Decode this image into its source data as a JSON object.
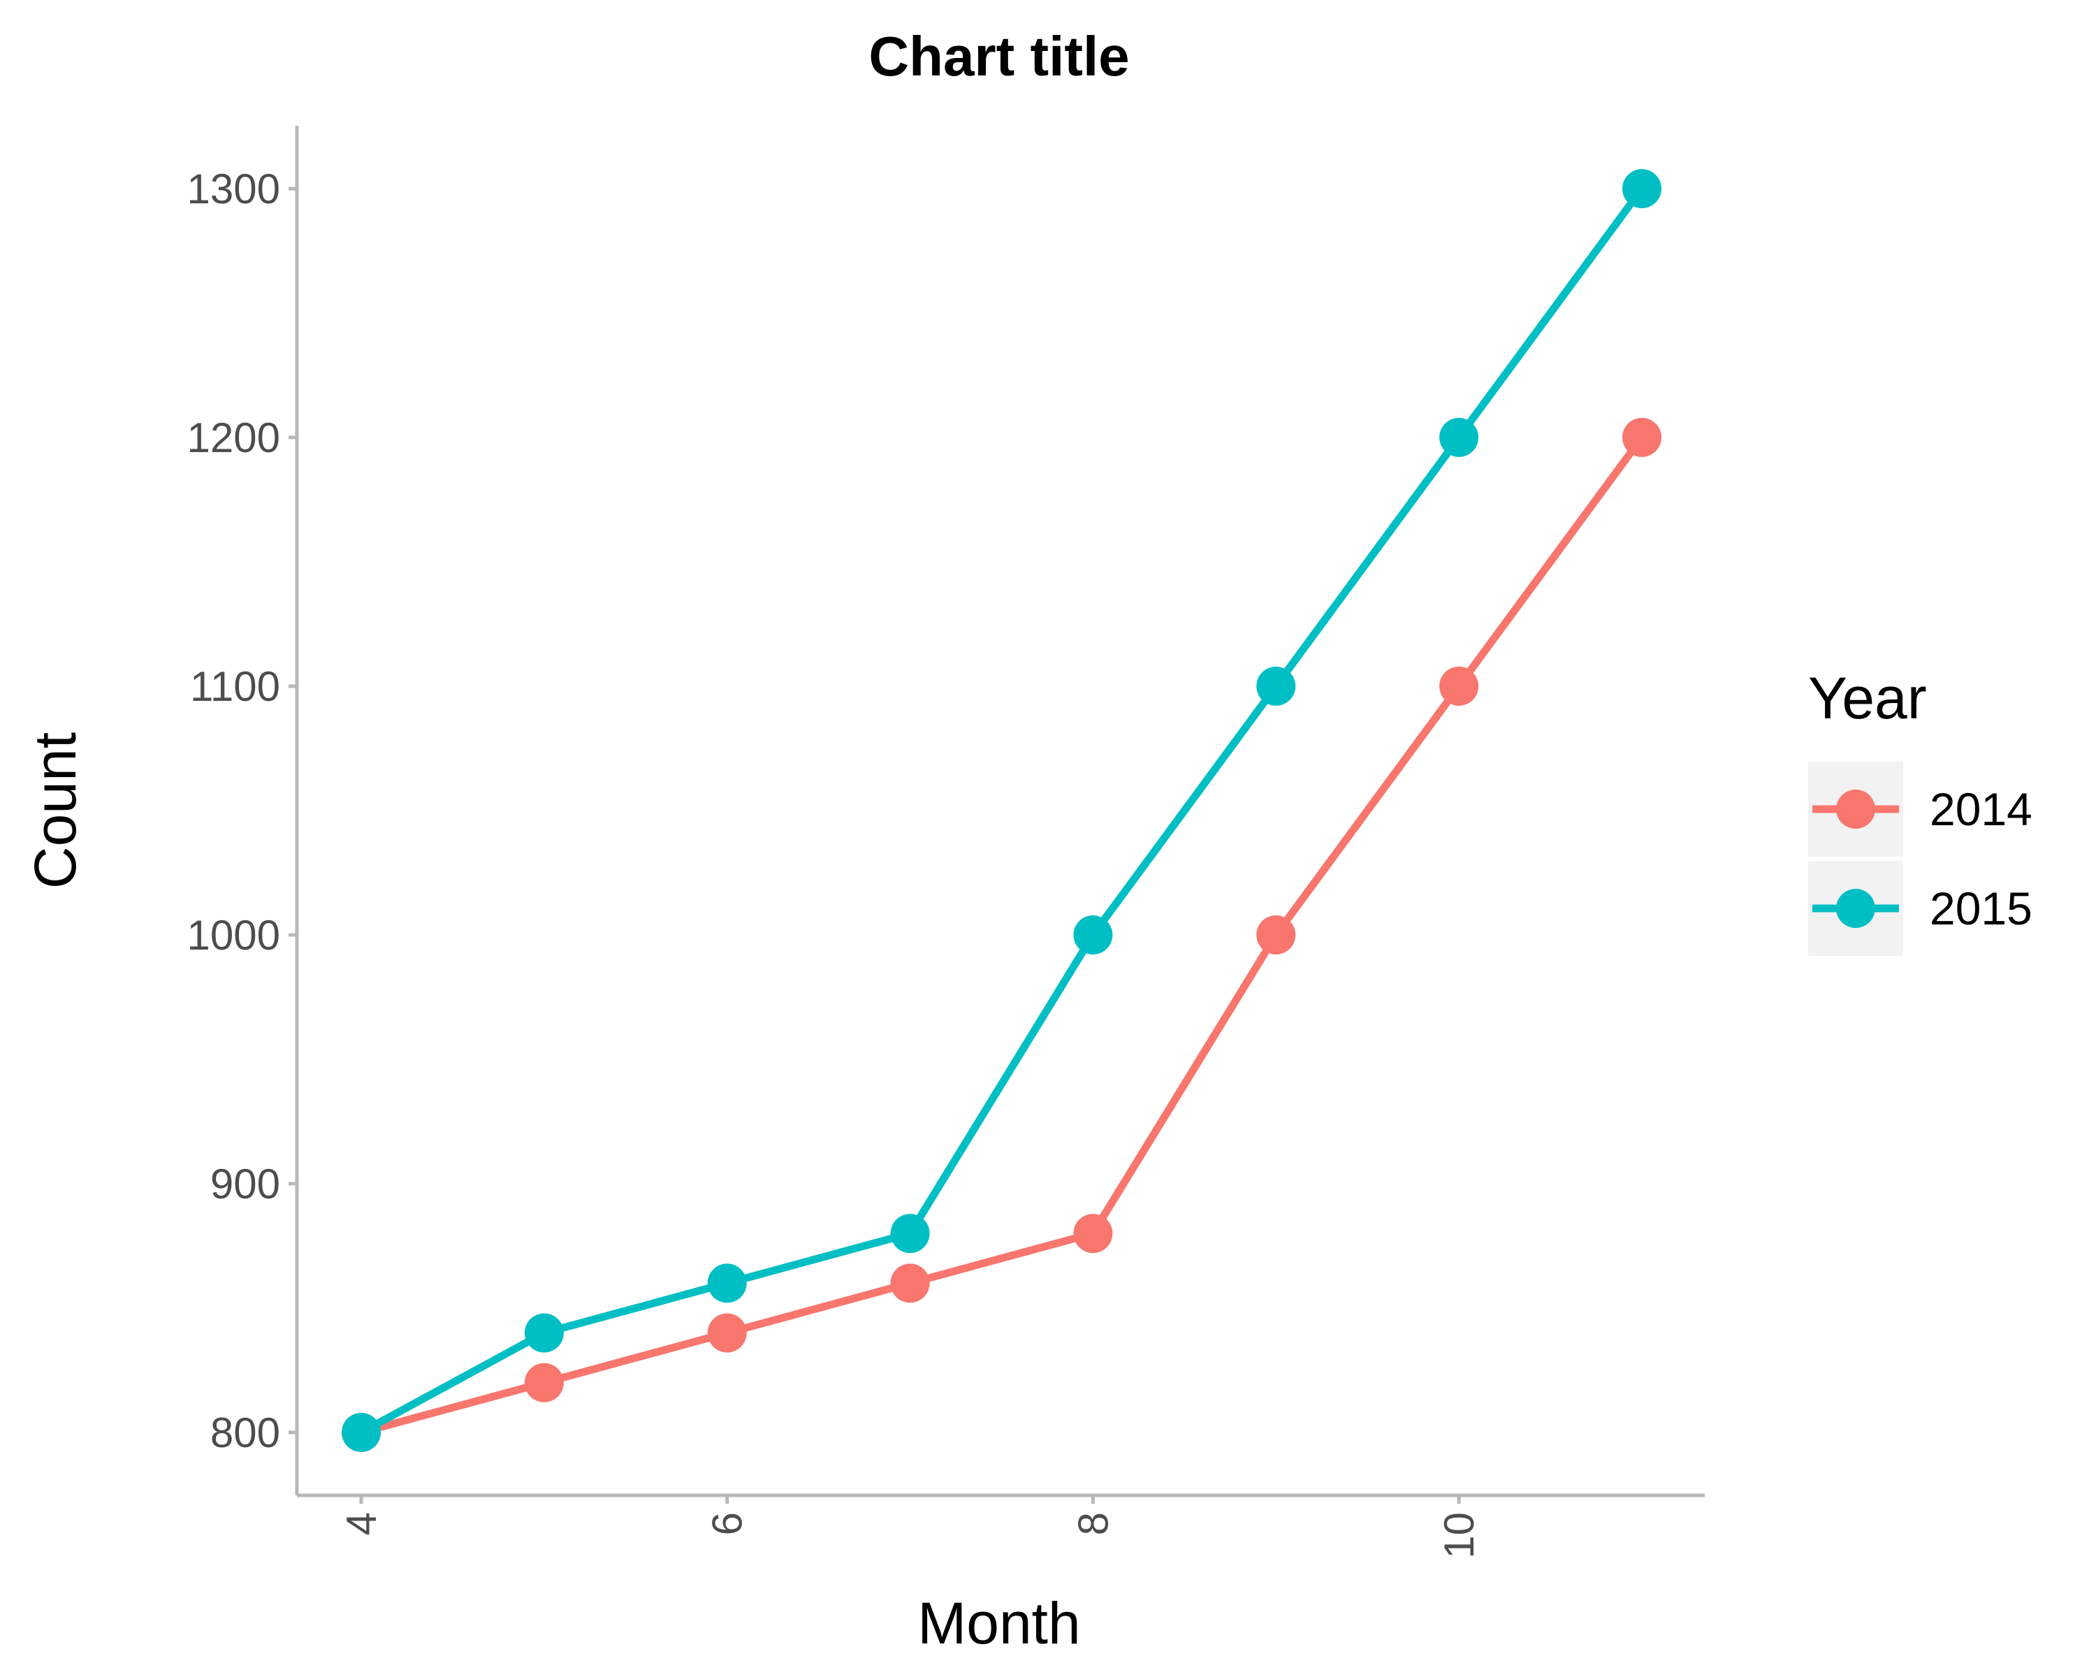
{
  "chart_data": {
    "type": "line",
    "title": "Chart title",
    "xlabel": "Month",
    "ylabel": "Count",
    "x": [
      4,
      5,
      6,
      7,
      8,
      9,
      10,
      11
    ],
    "xticks": [
      "4",
      "6",
      "8",
      "10"
    ],
    "yticks": [
      "800",
      "900",
      "1000",
      "1100",
      "1200",
      "1300"
    ],
    "xlim": [
      3.65,
      11.35
    ],
    "ylim": [
      776,
      1325
    ],
    "grid": false,
    "legend": {
      "title": "Year",
      "placement": "right"
    },
    "series": [
      {
        "name": "2014",
        "color": "#F8766D",
        "values": [
          800,
          820,
          840,
          860,
          880,
          1000,
          1100,
          1200
        ]
      },
      {
        "name": "2015",
        "color": "#00BFC4",
        "values": [
          800,
          840,
          860,
          880,
          1000,
          1100,
          1200,
          1300
        ]
      }
    ]
  }
}
